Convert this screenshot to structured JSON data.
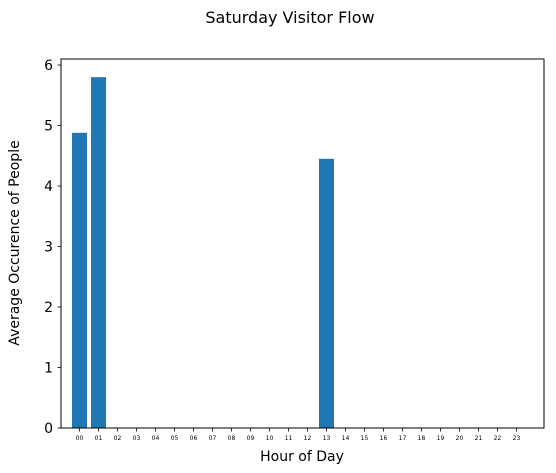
{
  "chart_data": {
    "type": "bar",
    "title": "Saturday Visitor Flow",
    "xlabel": "Hour of Day",
    "ylabel": "Average Occurence of People",
    "categories": [
      "00",
      "01",
      "02",
      "03",
      "04",
      "05",
      "06",
      "07",
      "08",
      "09",
      "10",
      "11",
      "12",
      "13",
      "14",
      "15",
      "16",
      "17",
      "18",
      "19",
      "20",
      "21",
      "22",
      "23"
    ],
    "values": [
      4.88,
      5.8,
      0,
      0,
      0,
      0,
      0,
      0,
      0,
      0,
      0,
      0,
      0,
      4.45,
      0,
      0,
      0,
      0,
      0,
      0,
      0,
      0,
      0,
      0
    ],
    "ylim": [
      0,
      6.1
    ],
    "yticks": [
      "0",
      "1",
      "2",
      "3",
      "4",
      "5",
      "6"
    ],
    "grid": false,
    "bar_color": "#1f77b4"
  }
}
